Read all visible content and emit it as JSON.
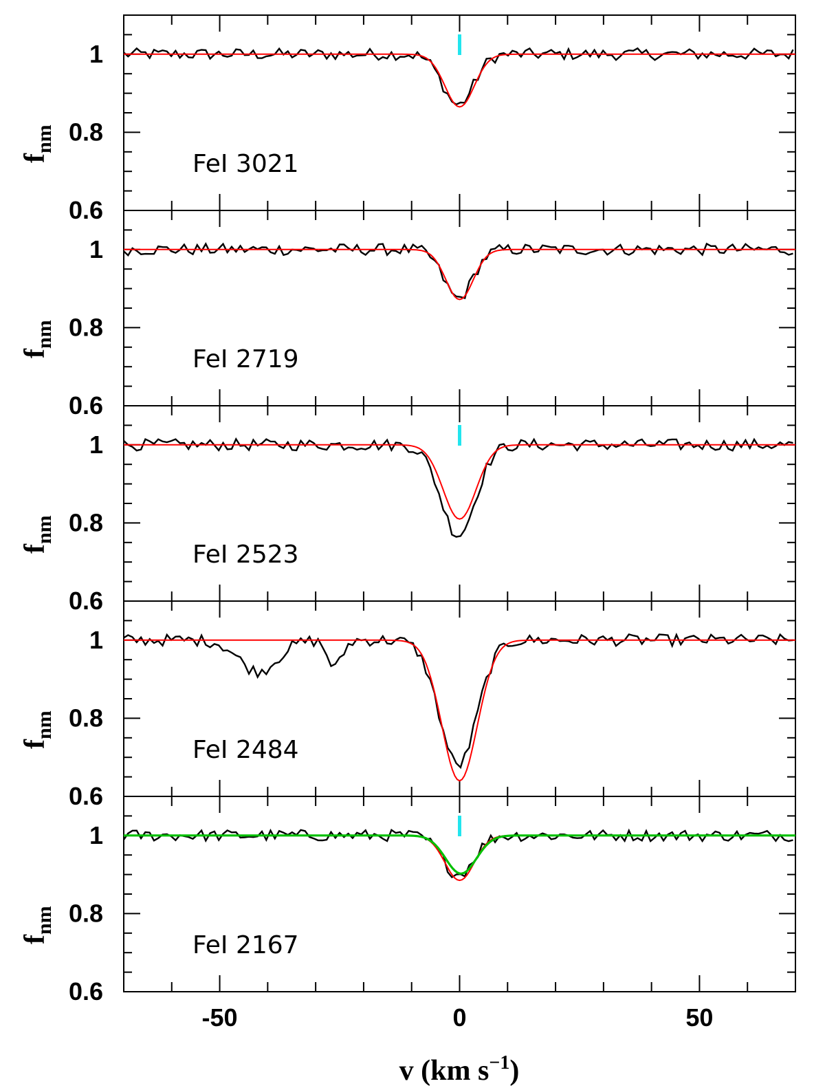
{
  "colors": {
    "data": "#000000",
    "fit": "#ff0000",
    "fit_alt": "#00c000",
    "marker": "#22e5ee",
    "axis": "#000000"
  },
  "chart_data": {
    "type": "line",
    "xlabel": "v (km s",
    "xlabel_sup": "−1",
    "xlabel_close": ")",
    "xlim": [
      -70,
      70
    ],
    "x_ticks": [
      -50,
      0,
      50
    ],
    "ylim": [
      0.6,
      1.1
    ],
    "y_ticks": [
      1,
      0.8,
      0.6
    ],
    "ylabel": "f",
    "ylabel_sub": "nm",
    "panels": [
      {
        "label": "FeI 3021",
        "depth": 0.13,
        "fit_depth": 0.135,
        "width": 3.2,
        "marker": true,
        "extra_abs": []
      },
      {
        "label": "FeI 2719",
        "depth": 0.125,
        "fit_depth": 0.128,
        "width": 3.0,
        "marker": false,
        "extra_abs": []
      },
      {
        "label": "FeI 2523",
        "depth": 0.23,
        "fit_depth": 0.19,
        "width": 3.6,
        "marker": true,
        "extra_abs": []
      },
      {
        "label": "FeI 2484",
        "depth": 0.32,
        "fit_depth": 0.36,
        "width": 3.9,
        "marker": false,
        "extra_abs": [
          {
            "v": -42,
            "depth": 0.08,
            "width": 4
          },
          {
            "v": -26,
            "depth": 0.07,
            "width": 1.5
          }
        ]
      },
      {
        "label": "FeI 2167",
        "depth": 0.1,
        "fit_depth": 0.115,
        "width": 3.2,
        "marker": true,
        "extra_abs": [],
        "alt_fit": true
      }
    ]
  }
}
